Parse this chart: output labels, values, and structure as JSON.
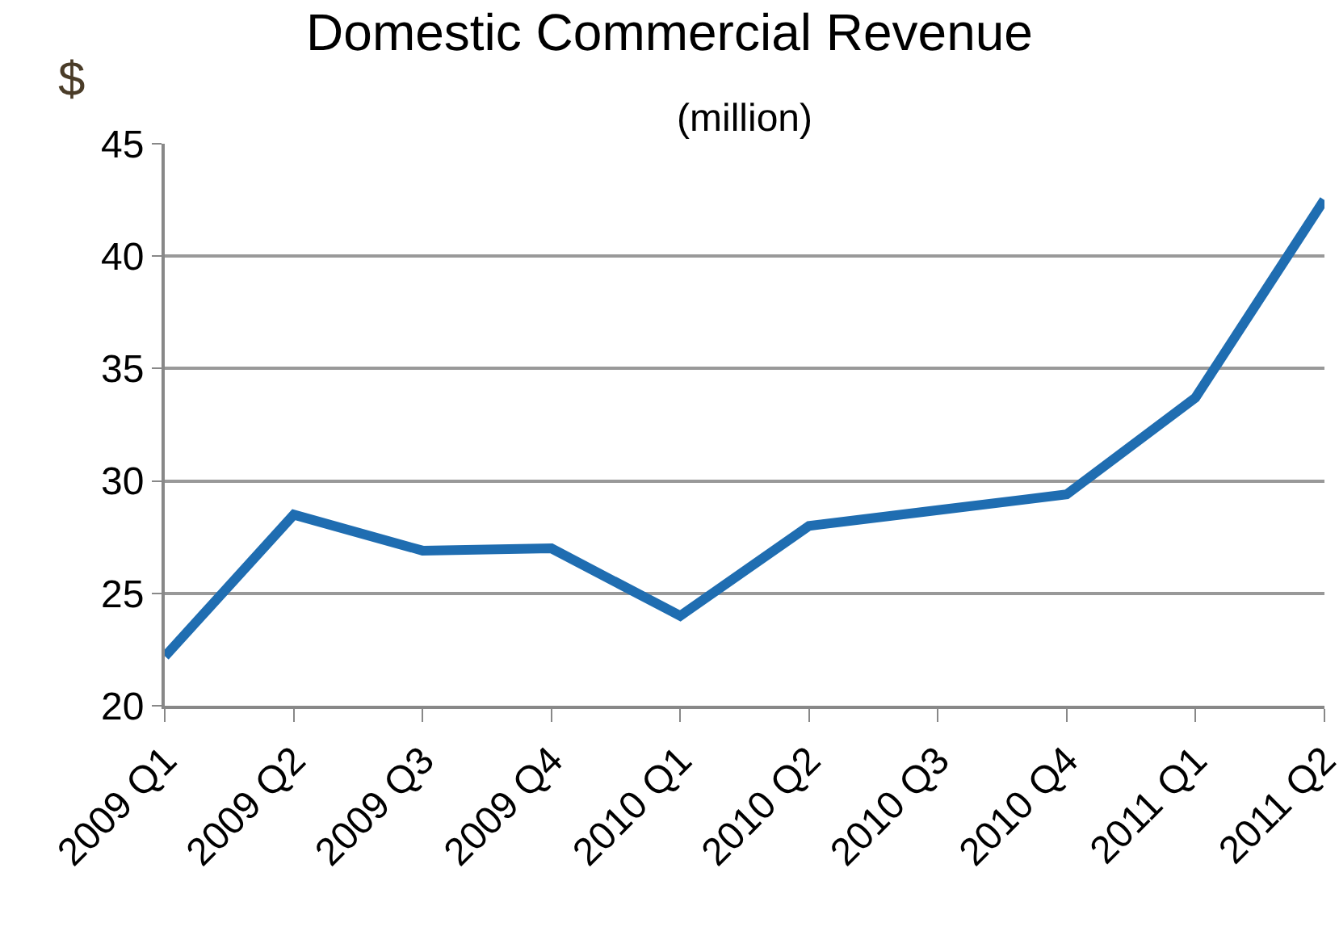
{
  "chart_data": {
    "type": "line",
    "title": "Domestic Commercial Revenue",
    "subtitle": "(million)",
    "ylabel": "$",
    "categories": [
      "2009 Q1",
      "2009 Q2",
      "2009 Q3",
      "2009 Q4",
      "2010 Q1",
      "2010 Q2",
      "2010 Q3",
      "2010 Q4",
      "2011 Q1",
      "2011 Q2"
    ],
    "series": [
      {
        "color": "#1f6db1",
        "values": [
          22.2,
          28.5,
          26.9,
          27.0,
          24.0,
          28.0,
          28.7,
          29.4,
          33.7,
          42.5
        ]
      }
    ],
    "ylim": [
      20,
      45
    ],
    "yticks": [
      20,
      25,
      30,
      35,
      40,
      45
    ],
    "grid": "y",
    "marker": "none",
    "line_style": "solid"
  }
}
